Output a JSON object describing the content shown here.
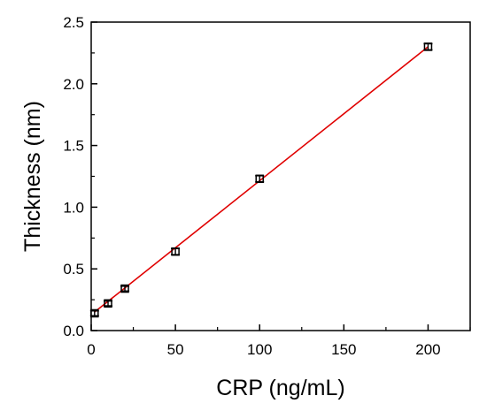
{
  "chart_data": {
    "type": "scatter",
    "title": "",
    "xlabel": "CRP (ng/mL)",
    "ylabel": "Thickness (nm)",
    "xlim": [
      0,
      225
    ],
    "ylim": [
      0,
      2.5
    ],
    "xticks": [
      0,
      50,
      100,
      150,
      200
    ],
    "yticks": [
      0.0,
      0.5,
      1.0,
      1.5,
      2.0,
      2.5
    ],
    "xtick_labels": [
      "0",
      "50",
      "100",
      "150",
      "200"
    ],
    "ytick_labels": [
      "0.0",
      "0.5",
      "1.0",
      "1.5",
      "2.0",
      "2.5"
    ],
    "grid": false,
    "series": [
      {
        "x": [
          2,
          10,
          20,
          50,
          100,
          200
        ],
        "y": [
          0.14,
          0.22,
          0.34,
          0.64,
          1.23,
          2.3
        ],
        "yerr": [
          0.02,
          0.02,
          0.02,
          0.025,
          0.025,
          0.025
        ],
        "marker": "open-square",
        "color": "#000000"
      }
    ],
    "fit_line": {
      "x": [
        2,
        200
      ],
      "y": [
        0.15,
        2.3
      ],
      "color": "#e00000"
    }
  }
}
